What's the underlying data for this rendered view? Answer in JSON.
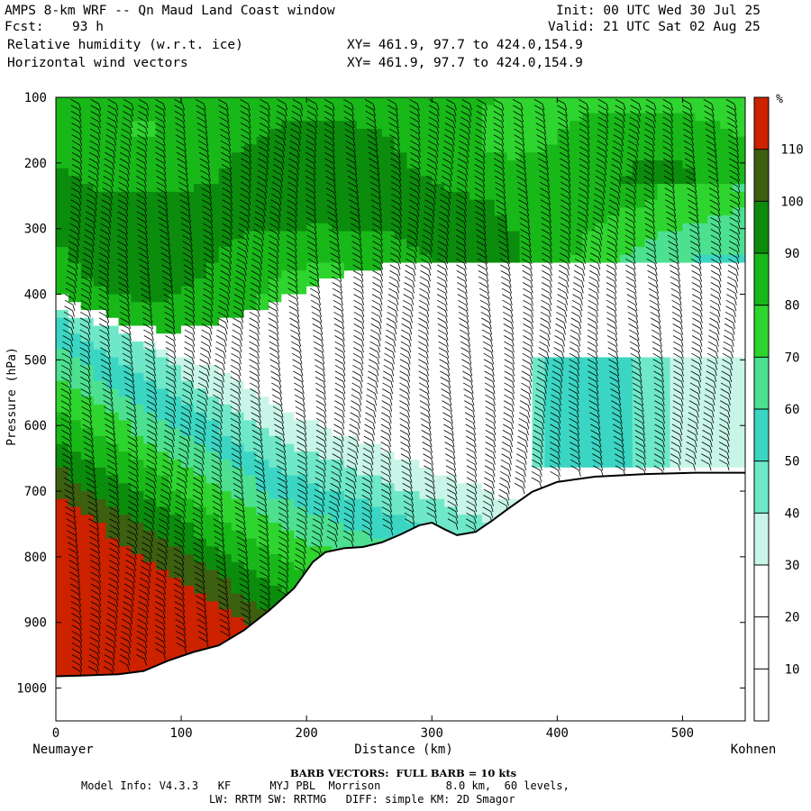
{
  "header": {
    "title": "AMPS 8-km WRF -- Qn Maud Land Coast window",
    "fcst_label": "Fcst:",
    "fcst_value": "93 h",
    "init": "Init: 00 UTC Wed 30 Jul 25",
    "valid": "Valid: 21 UTC Sat 02 Aug 25",
    "field1": "Relative humidity (w.r.t. ice)",
    "field2": "Horizontal wind vectors",
    "xy1": "XY= 461.9, 97.7 to 424.0,154.9",
    "xy2": "XY= 461.9, 97.7 to 424.0,154.9"
  },
  "footer": {
    "barb_note": "BARB VECTORS:  FULL BARB = 10 kts",
    "model_info": "Model Info: V4.3.3   KF      MYJ PBL  Morrison          8.0 km,  60 levels,",
    "physics": "LW: RRTM SW: RRTMG   DIFF: simple KM: 2D Smagor"
  },
  "chart_data": {
    "type": "heatmap",
    "xlabel": "Distance (km)",
    "ylabel": "Pressure (hPa)",
    "xlim": [
      0,
      550
    ],
    "ylim": [
      1050,
      100
    ],
    "x_ticks": [
      0,
      100,
      200,
      300,
      400,
      500
    ],
    "y_ticks": [
      100,
      200,
      300,
      400,
      500,
      600,
      700,
      800,
      900,
      1000
    ],
    "start_label": "Neumayer",
    "end_label": "Kohnen",
    "colorbar": {
      "unit": "%",
      "ticks": [
        10,
        20,
        30,
        40,
        50,
        60,
        70,
        80,
        90,
        100,
        110
      ],
      "colors": [
        "#ffffff",
        "#ffffff",
        "#ffffff",
        "#c8f5e8",
        "#6ee8c8",
        "#3bd6c3",
        "#4ce090",
        "#2fd52f",
        "#19b819",
        "#0c8c0c",
        "#3d5f10",
        "#cc2200"
      ]
    },
    "terrain_surface_hpa": [
      [
        0,
        982
      ],
      [
        20,
        981
      ],
      [
        50,
        979
      ],
      [
        70,
        974
      ],
      [
        90,
        958
      ],
      [
        110,
        945
      ],
      [
        130,
        935
      ],
      [
        150,
        912
      ],
      [
        170,
        882
      ],
      [
        190,
        848
      ],
      [
        205,
        808
      ],
      [
        215,
        793
      ],
      [
        230,
        787
      ],
      [
        245,
        785
      ],
      [
        260,
        778
      ],
      [
        275,
        766
      ],
      [
        290,
        752
      ],
      [
        300,
        748
      ],
      [
        310,
        758
      ],
      [
        320,
        767
      ],
      [
        335,
        762
      ],
      [
        348,
        745
      ],
      [
        360,
        728
      ],
      [
        380,
        701
      ],
      [
        400,
        686
      ],
      [
        430,
        678
      ],
      [
        470,
        674
      ],
      [
        510,
        672
      ],
      [
        550,
        672
      ]
    ],
    "wind_barb_columns_km": [
      15,
      30,
      45,
      60,
      75,
      90,
      105,
      120,
      135,
      150,
      165,
      180,
      195,
      210,
      225,
      240,
      255,
      270,
      285,
      300,
      315,
      330,
      345,
      360,
      375,
      390,
      405,
      420,
      435,
      450,
      465,
      480,
      495,
      510,
      525,
      540
    ]
  }
}
